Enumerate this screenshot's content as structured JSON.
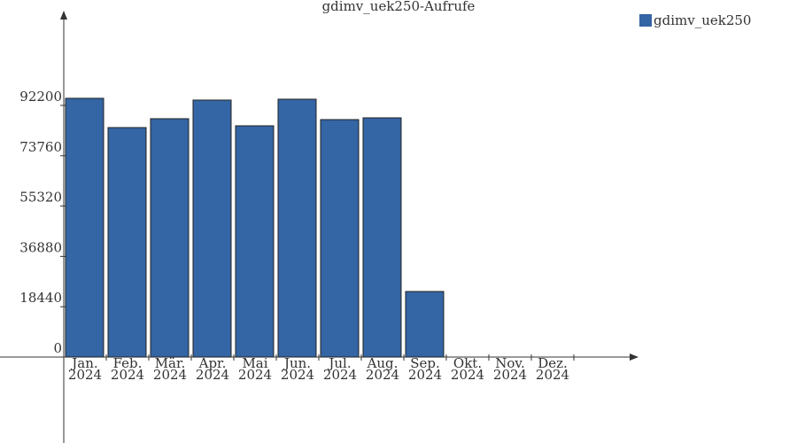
{
  "chart_data": {
    "type": "bar",
    "title": "gdimv_uek250-Aufrufe",
    "categories": [
      "Jan. 2024",
      "Feb. 2024",
      "Mär. 2024",
      "Apr. 2024",
      "Mai 2024",
      "Jun. 2024",
      "Jul. 2024",
      "Aug. 2024",
      "Sep. 2024",
      "Okt. 2024",
      "Nov. 2024",
      "Dez. 2024"
    ],
    "series": [
      {
        "name": "gdimv_uek250",
        "color": "#3465a4",
        "values": [
          94800,
          84080,
          87330,
          94150,
          84730,
          94470,
          87000,
          87650,
          24020,
          null,
          null,
          null
        ]
      }
    ],
    "ylim": [
      0,
      124000
    ],
    "yticks": [
      0,
      18440,
      36880,
      55320,
      73760,
      92200
    ]
  }
}
